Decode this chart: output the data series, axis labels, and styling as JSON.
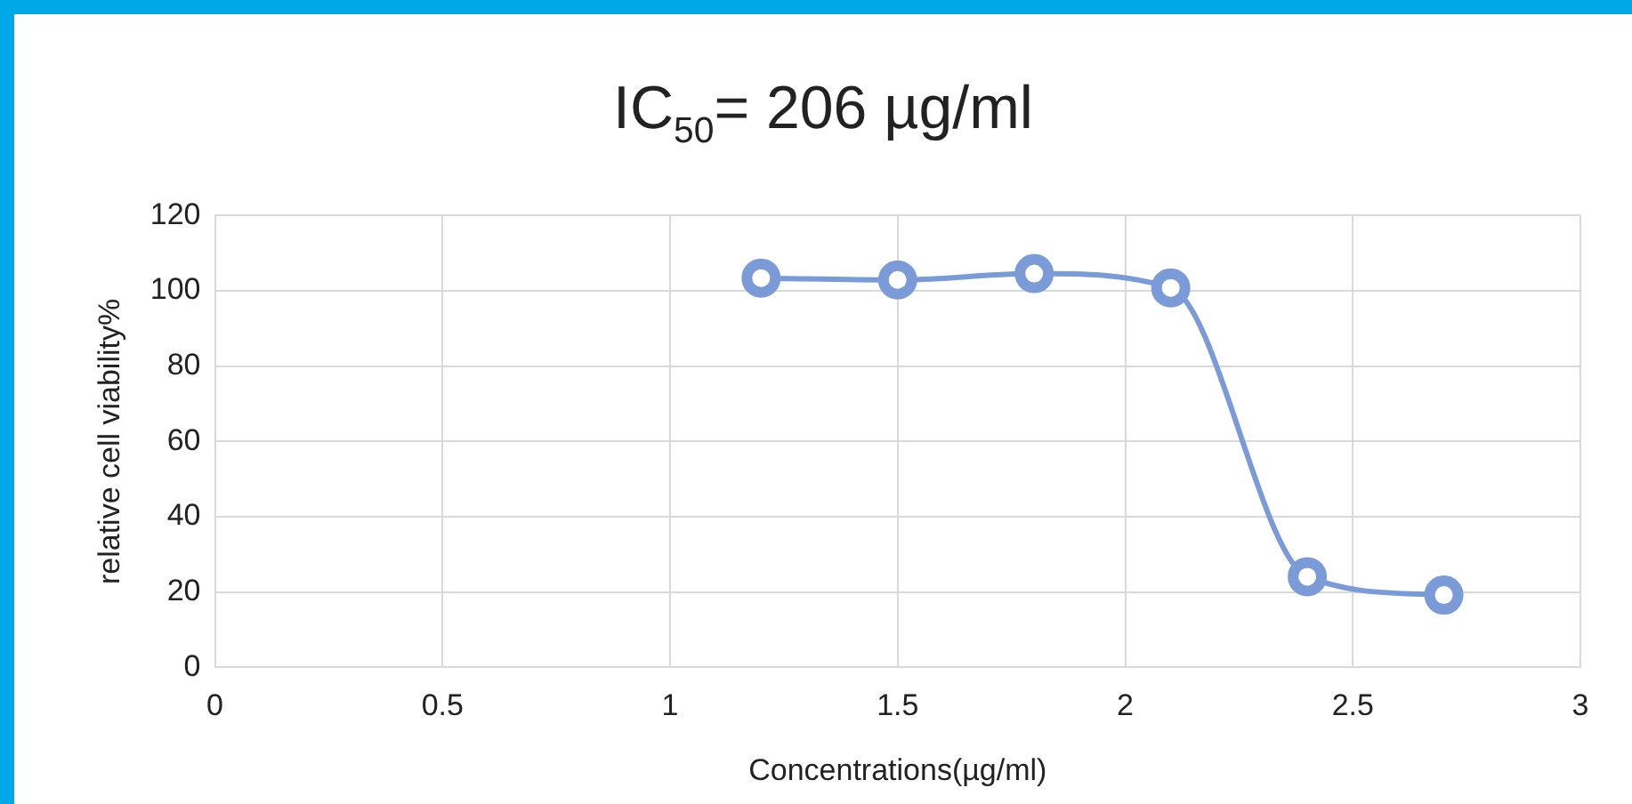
{
  "chart_data": {
    "type": "line",
    "title": "IC$_{50}$= 206 µg/ml",
    "xlabel": "Concentrations(µg/ml)",
    "ylabel": "relative cell viability%",
    "x": [
      1.2,
      1.5,
      1.8,
      2.1,
      2.4,
      2.7
    ],
    "series": [
      {
        "color": "#7b9bd8",
        "values": [
          103.4,
          102.9,
          104.6,
          100.8,
          24.1,
          19.2
        ]
      }
    ],
    "xlim": [
      0,
      3
    ],
    "xticks": [
      0,
      0.5,
      1,
      1.5,
      2,
      2.5,
      3
    ],
    "ylim": [
      0,
      120
    ],
    "yticks": [
      0,
      20,
      40,
      60,
      80,
      100,
      120
    ],
    "grid": true,
    "legend": false,
    "marker": "circle",
    "line_style": "solid"
  }
}
